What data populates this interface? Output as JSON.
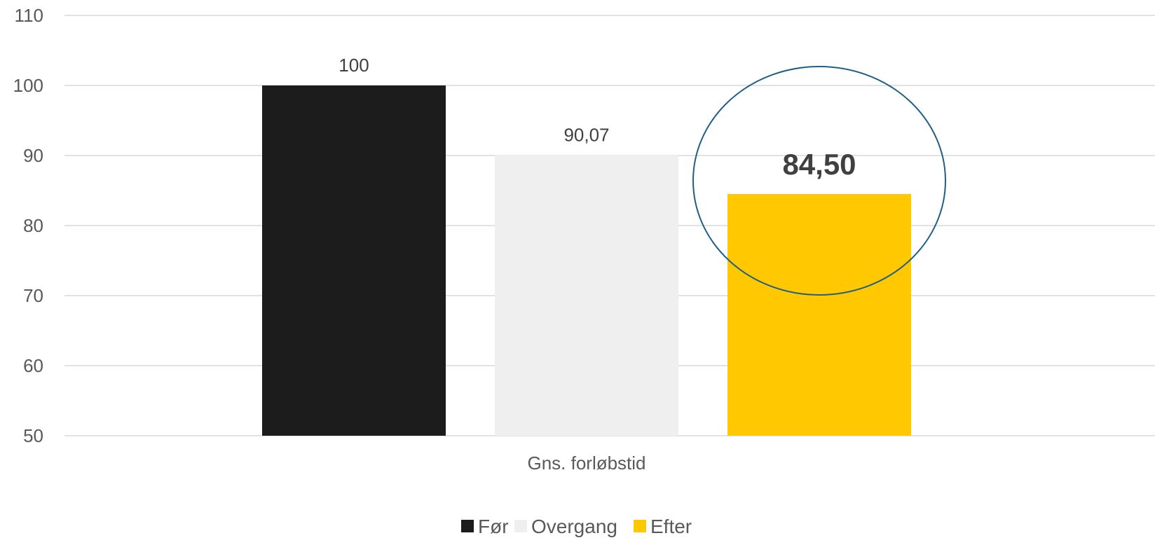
{
  "chart_data": {
    "type": "bar",
    "categories": [
      "Gns. forløbstid"
    ],
    "series": [
      {
        "name": "Før",
        "values": [
          100
        ],
        "label": "100",
        "color": "#1c1c1c"
      },
      {
        "name": "Overgang",
        "values": [
          90.07
        ],
        "label": "90,07",
        "color": "#efefef"
      },
      {
        "name": "Efter",
        "values": [
          84.5
        ],
        "label": "84,50",
        "color": "#ffc800"
      }
    ],
    "ylim": [
      50,
      110
    ],
    "yticks": [
      "50",
      "60",
      "70",
      "80",
      "90",
      "100",
      "110"
    ],
    "ytick_values": [
      50,
      60,
      70,
      80,
      90,
      100,
      110
    ],
    "grid": true,
    "legend_position": "bottom",
    "highlight": {
      "series": "Efter",
      "shape": "ellipse",
      "color": "#1f5f87"
    }
  }
}
